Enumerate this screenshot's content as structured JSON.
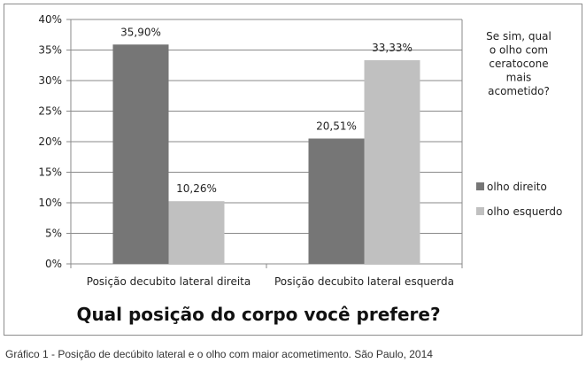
{
  "chart_data": {
    "type": "bar",
    "title": "Qual posição do corpo você prefere?",
    "categories": [
      "Posição decubito lateral direita",
      "Posição decubito lateral esquerda"
    ],
    "series": [
      {
        "name": "olho direito",
        "values": [
          35.9,
          20.51
        ],
        "labels": [
          "35,90%",
          "20,51%"
        ],
        "color": "#767676"
      },
      {
        "name": "olho esquerdo",
        "values": [
          10.26,
          33.33
        ],
        "labels": [
          "10,26%",
          "33,33%"
        ],
        "color": "#c0c0c0"
      }
    ],
    "legend_title": [
      "Se sim, qual",
      "o olho com",
      "ceratocone",
      "mais",
      "acometido?"
    ],
    "legend_position": "right",
    "ylim": [
      0,
      40
    ],
    "yticks": [
      0,
      5,
      10,
      15,
      20,
      25,
      30,
      35,
      40
    ],
    "ytick_labels": [
      "0%",
      "5%",
      "10%",
      "15%",
      "20%",
      "25%",
      "30%",
      "35%",
      "40%"
    ],
    "grid": true,
    "gridline_color": "#8a8a8a"
  },
  "caption": "Gráfico 1 - Posição de decúbito lateral e o olho com maior acometimento. São Paulo, 2014"
}
